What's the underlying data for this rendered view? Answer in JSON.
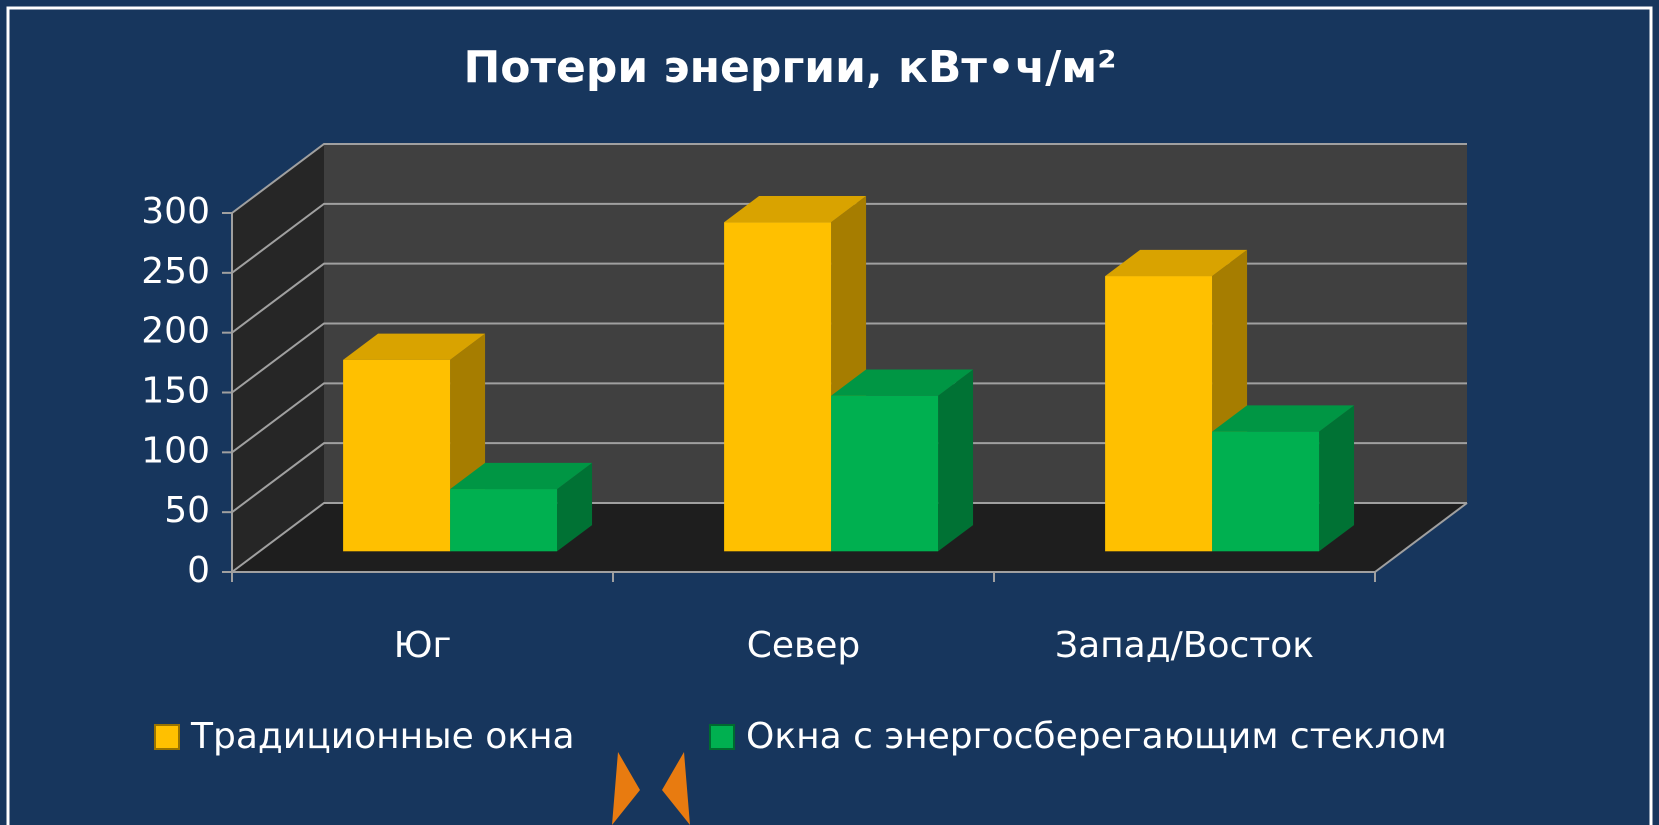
{
  "chart_data": {
    "type": "bar3d",
    "title": "Потери энергии, кВт•ч/м²",
    "categories": [
      "Юг",
      "Север",
      "Запад/Восток"
    ],
    "series": [
      {
        "name": "Традиционные окна",
        "color": "#ffc000",
        "values": [
          160,
          275,
          230
        ]
      },
      {
        "name": "Окна с энергосберегающим стеклом",
        "color": "#00b050",
        "values": [
          52,
          130,
          100
        ]
      }
    ],
    "ylim": [
      0,
      300
    ],
    "yticks": [
      0,
      50,
      100,
      150,
      200,
      250,
      300
    ],
    "grid": true,
    "legend": "bottom"
  }
}
